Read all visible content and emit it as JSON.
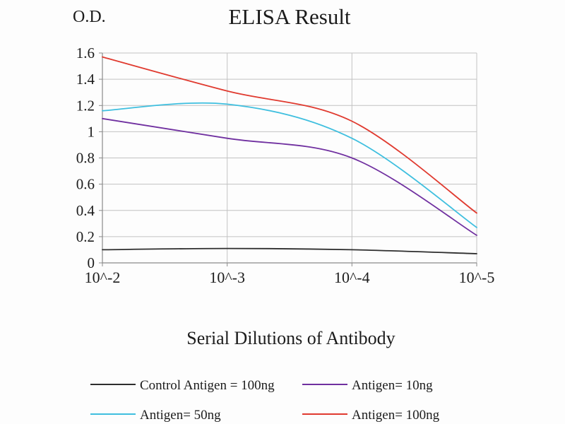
{
  "page": {
    "background": "#fdfdfd"
  },
  "chart_data": {
    "type": "line",
    "title": "ELISA Result",
    "ylabel": "O.D.",
    "xlabel": "Serial Dilutions of Antibody",
    "categories": [
      "10^-2",
      "10^-3",
      "10^-4",
      "10^-5"
    ],
    "ylim": [
      0,
      1.6
    ],
    "yticks": [
      0,
      0.2,
      0.4,
      0.6,
      0.8,
      1,
      1.2,
      1.4,
      1.6
    ],
    "ytick_labels": [
      "0",
      "0.2",
      "0.4",
      "0.6",
      "0.8",
      "1",
      "1.2",
      "1.4",
      "1.6"
    ],
    "grid": true,
    "legend_position": "bottom",
    "colors": {
      "grid": "#c2c2c2",
      "axis": "#8a8a8a",
      "text": "#1c1c1c"
    },
    "series": [
      {
        "name": "Control Antigen = 100ng",
        "color": "#2e2e2e",
        "values": [
          0.1,
          0.11,
          0.1,
          0.07
        ]
      },
      {
        "name": "Antigen= 10ng",
        "color": "#7030a0",
        "values": [
          1.1,
          0.95,
          0.8,
          0.21
        ]
      },
      {
        "name": "Antigen= 50ng",
        "color": "#3fbfdf",
        "values": [
          1.16,
          1.21,
          0.95,
          0.27
        ]
      },
      {
        "name": "Antigen= 100ng",
        "color": "#e03a2f",
        "values": [
          1.57,
          1.31,
          1.08,
          0.38
        ]
      }
    ]
  }
}
